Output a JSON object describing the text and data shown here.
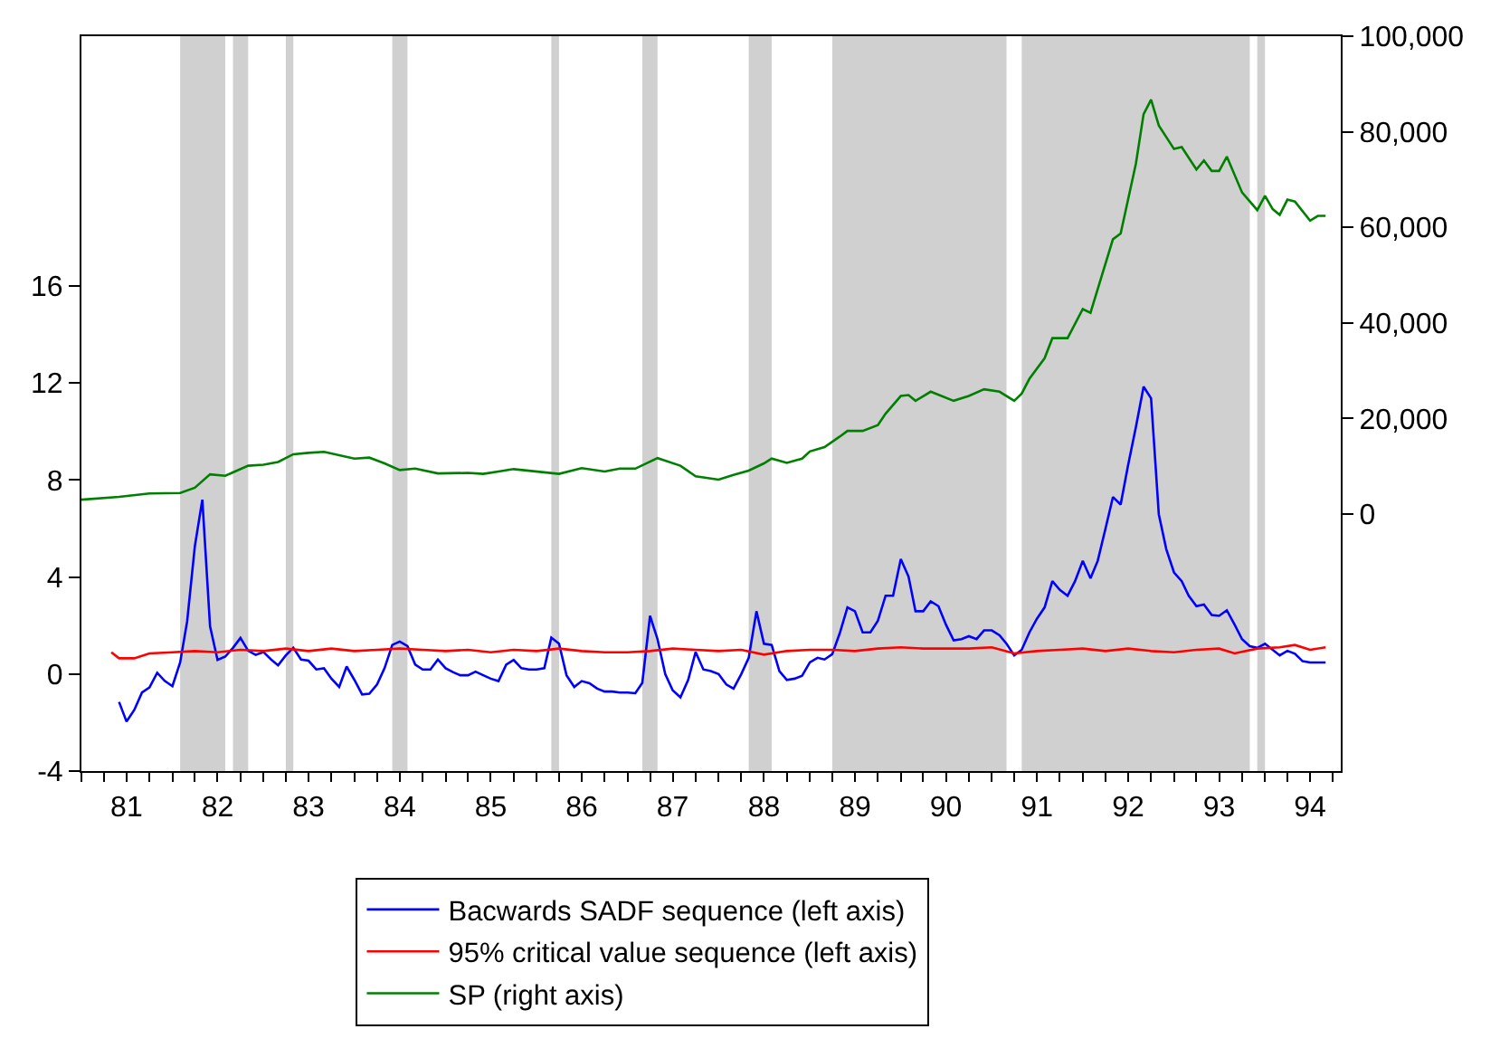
{
  "chart_data": {
    "type": "line",
    "x": [
      "1981-06",
      "1981-07",
      "1981-08",
      "1981-09",
      "1981-10",
      "1981-11",
      "1981-12",
      "1982-01",
      "1982-02",
      "1982-03",
      "1982-04",
      "1982-05",
      "1982-06",
      "1982-07",
      "1982-08",
      "1982-09",
      "1982-10",
      "1982-11",
      "1982-12",
      "1983-01",
      "1983-02",
      "1983-03",
      "1983-04",
      "1983-05",
      "1983-06",
      "1983-07",
      "1983-08",
      "1983-09",
      "1983-10",
      "1983-11",
      "1983-12",
      "1984-01",
      "1984-02",
      "1984-03",
      "1984-04",
      "1984-05",
      "1984-06",
      "1984-07",
      "1984-08",
      "1984-09",
      "1984-10",
      "1984-11",
      "1984-12",
      "1985-01",
      "1985-02",
      "1985-03",
      "1985-04",
      "1985-05",
      "1985-06",
      "1985-07",
      "1985-08",
      "1985-09",
      "1985-10",
      "1985-11",
      "1985-12",
      "1986-01",
      "1986-02",
      "1986-03",
      "1986-04",
      "1986-05",
      "1986-06",
      "1986-07",
      "1986-08",
      "1986-09",
      "1986-10",
      "1986-11",
      "1986-12",
      "1987-01",
      "1987-02",
      "1987-03",
      "1987-04",
      "1987-05",
      "1987-06",
      "1987-07",
      "1987-08",
      "1987-09",
      "1987-10",
      "1987-11",
      "1987-12",
      "1988-01",
      "1988-02",
      "1988-03",
      "1988-04",
      "1988-05",
      "1988-06",
      "1988-07",
      "1988-08",
      "1988-09",
      "1988-10",
      "1988-11",
      "1988-12",
      "1989-01",
      "1989-02",
      "1989-03",
      "1989-04",
      "1989-05",
      "1989-06",
      "1989-07",
      "1989-08",
      "1989-09",
      "1989-10",
      "1989-11",
      "1989-12",
      "1990-01",
      "1990-02",
      "1990-03",
      "1990-04",
      "1990-05",
      "1990-06",
      "1990-07",
      "1990-08",
      "1990-09",
      "1990-10",
      "1990-11",
      "1990-12",
      "1991-01",
      "1991-02",
      "1991-03",
      "1991-04",
      "1991-05",
      "1991-06",
      "1991-07",
      "1991-08",
      "1991-09",
      "1991-10",
      "1991-11",
      "1991-12",
      "1992-01",
      "1992-02",
      "1992-03",
      "1992-04",
      "1992-05",
      "1992-06",
      "1992-07",
      "1992-08",
      "1992-09",
      "1992-10",
      "1992-11",
      "1992-12",
      "1993-01",
      "1993-02",
      "1993-03",
      "1993-04",
      "1993-05",
      "1993-06",
      "1993-07",
      "1993-08",
      "1993-09",
      "1993-10",
      "1993-11",
      "1993-12",
      "1994-01",
      "1994-02",
      "1994-03",
      "1994-04",
      "1994-05",
      "1994-06",
      "1994-07",
      "1994-08",
      "1994-09"
    ],
    "series": [
      {
        "name": "Bacwards SADF sequence (left axis)",
        "color": "#0000ff",
        "values": [
          -1.15,
          -1.96,
          -1.48,
          -0.76,
          -0.55,
          0.05,
          -0.28,
          -0.5,
          0.48,
          2.16,
          5.27,
          7.19,
          1.97,
          0.58,
          0.72,
          1.08,
          1.49,
          0.96,
          0.79,
          0.91,
          0.6,
          0.36,
          0.77,
          1.08,
          0.6,
          0.55,
          0.19,
          0.24,
          -0.19,
          -0.53,
          0.31,
          -0.24,
          -0.84,
          -0.81,
          -0.43,
          0.24,
          1.2,
          1.34,
          1.15,
          0.39,
          0.19,
          0.19,
          0.6,
          0.24,
          0.07,
          -0.05,
          -0.05,
          0.1,
          -0.05,
          -0.19,
          -0.29,
          0.39,
          0.58,
          0.24,
          0.19,
          0.19,
          0.24,
          1.5,
          1.25,
          -0.05,
          -0.53,
          -0.29,
          -0.38,
          -0.6,
          -0.72,
          -0.72,
          -0.76,
          -0.76,
          -0.79,
          -0.36,
          2.4,
          1.44,
          0.0,
          -0.67,
          -0.96,
          -0.24,
          0.91,
          0.19,
          0.12,
          0.0,
          -0.43,
          -0.6,
          0.0,
          0.67,
          2.59,
          1.25,
          1.2,
          0.12,
          -0.24,
          -0.19,
          -0.07,
          0.48,
          0.67,
          0.6,
          0.82,
          1.68,
          2.75,
          2.59,
          1.72,
          1.72,
          2.2,
          3.23,
          3.23,
          4.74,
          4.02,
          2.59,
          2.59,
          3.0,
          2.8,
          2.04,
          1.39,
          1.44,
          1.56,
          1.44,
          1.8,
          1.8,
          1.6,
          1.25,
          0.77,
          1.0,
          1.72,
          2.28,
          2.75,
          3.83,
          3.47,
          3.23,
          3.83,
          4.67,
          3.95,
          4.67,
          5.99,
          7.3,
          6.99,
          8.62,
          10.18,
          11.85,
          11.37,
          6.59,
          5.15,
          4.19,
          3.83,
          3.23,
          2.8,
          2.87,
          2.44,
          2.4,
          2.63,
          2.04,
          1.44,
          1.15,
          1.08,
          1.25,
          1.0,
          0.77,
          0.96,
          0.84,
          0.53,
          0.48,
          0.48,
          0.48
        ]
      },
      {
        "name": "95% critical value sequence (left axis)",
        "color": "#ff0000",
        "x": [
          "1981-05",
          "1981-06",
          "1981-08",
          "1981-10",
          "1982-01",
          "1982-04",
          "1982-07",
          "1982-10",
          "1983-01",
          "1983-04",
          "1983-07",
          "1983-10",
          "1984-01",
          "1984-04",
          "1984-07",
          "1984-10",
          "1985-01",
          "1985-04",
          "1985-07",
          "1985-10",
          "1986-01",
          "1986-04",
          "1986-07",
          "1986-10",
          "1987-01",
          "1987-04",
          "1987-07",
          "1987-10",
          "1988-01",
          "1988-04",
          "1988-07",
          "1988-10",
          "1989-01",
          "1989-04",
          "1989-07",
          "1989-10",
          "1990-01",
          "1990-04",
          "1990-07",
          "1990-10",
          "1991-01",
          "1991-04",
          "1991-07",
          "1991-10",
          "1992-01",
          "1992-04",
          "1992-07",
          "1992-10",
          "1993-01",
          "1993-04",
          "1993-07",
          "1993-09",
          "1993-12",
          "1994-03",
          "1994-05",
          "1994-07",
          "1994-09"
        ],
        "values": [
          0.9,
          0.65,
          0.65,
          0.85,
          0.9,
          0.95,
          0.9,
          1.0,
          0.95,
          1.05,
          0.95,
          1.05,
          0.95,
          1.0,
          1.05,
          1.0,
          0.95,
          1.0,
          0.9,
          1.0,
          0.95,
          1.05,
          0.95,
          0.9,
          0.9,
          0.95,
          1.05,
          1.0,
          0.95,
          1.0,
          0.8,
          0.95,
          1.0,
          1.0,
          0.95,
          1.05,
          1.1,
          1.05,
          1.05,
          1.05,
          1.1,
          0.85,
          0.95,
          1.0,
          1.05,
          0.95,
          1.05,
          0.95,
          0.9,
          1.0,
          1.05,
          0.85,
          1.05,
          1.1,
          1.2,
          1.0,
          1.1
        ]
      },
      {
        "name": "SP (right axis)",
        "color": "#008000",
        "axis": "y2",
        "x": [
          "1981-01",
          "1981-06",
          "1981-10",
          "1982-02",
          "1982-04",
          "1982-06",
          "1982-08",
          "1982-11",
          "1983-01",
          "1983-03",
          "1983-05",
          "1983-07",
          "1983-09",
          "1984-01",
          "1984-03",
          "1984-05",
          "1984-07",
          "1984-09",
          "1984-12",
          "1985-04",
          "1985-06",
          "1985-08",
          "1985-10",
          "1986-04",
          "1986-07",
          "1986-10",
          "1986-12",
          "1987-02",
          "1987-05",
          "1987-08",
          "1987-10",
          "1988-01",
          "1988-03",
          "1988-05",
          "1988-07",
          "1988-08",
          "1988-10",
          "1988-12",
          "1989-01",
          "1989-03",
          "1989-05",
          "1989-06",
          "1989-08",
          "1989-10",
          "1989-11",
          "1990-01",
          "1990-02",
          "1990-03",
          "1990-05",
          "1990-08",
          "1990-10",
          "1990-12",
          "1991-02",
          "1991-04",
          "1991-05",
          "1991-06",
          "1991-08",
          "1991-09",
          "1991-11",
          "1992-01",
          "1992-02",
          "1992-05",
          "1992-06",
          "1992-08",
          "1992-09",
          "1992-10",
          "1992-11",
          "1993-01",
          "1993-02",
          "1993-04",
          "1993-05",
          "1993-06",
          "1993-07",
          "1993-08",
          "1993-10",
          "1993-12",
          "1994-01",
          "1994-02",
          "1994-03",
          "1994-04",
          "1994-05",
          "1994-07",
          "1994-08",
          "1994-09"
        ],
        "values": [
          3000,
          3600,
          4300,
          4400,
          5500,
          8300,
          8000,
          10100,
          10300,
          10900,
          12500,
          12800,
          13000,
          11600,
          11800,
          10600,
          9200,
          9500,
          8500,
          8600,
          8400,
          8900,
          9400,
          8400,
          9600,
          8900,
          9500,
          9500,
          11700,
          10100,
          7900,
          7200,
          8200,
          9100,
          10600,
          11600,
          10700,
          11600,
          13100,
          14000,
          16200,
          17400,
          17400,
          18600,
          21000,
          24700,
          24900,
          23700,
          25600,
          23700,
          24700,
          26100,
          25600,
          23700,
          25200,
          28300,
          32600,
          36800,
          36800,
          42900,
          42100,
          57500,
          58700,
          73300,
          83700,
          86700,
          81300,
          76400,
          76800,
          72100,
          74000,
          71800,
          71800,
          74800,
          67300,
          63600,
          66600,
          63800,
          62600,
          65800,
          65400,
          61400,
          62400,
          62400
        ]
      }
    ],
    "xlim": [
      "1981-01",
      "1994-11"
    ],
    "xticks": [
      {
        "value": "1981-01",
        "label": null
      },
      {
        "value": "1981-04",
        "label": null
      },
      {
        "value": "1981-07",
        "label": "81"
      },
      {
        "value": "1981-10",
        "label": null
      },
      {
        "value": "1982-01",
        "label": null
      },
      {
        "value": "1982-04",
        "label": null
      },
      {
        "value": "1982-07",
        "label": "82"
      },
      {
        "value": "1982-10",
        "label": null
      },
      {
        "value": "1983-01",
        "label": null
      },
      {
        "value": "1983-04",
        "label": null
      },
      {
        "value": "1983-07",
        "label": "83"
      },
      {
        "value": "1983-10",
        "label": null
      },
      {
        "value": "1984-01",
        "label": null
      },
      {
        "value": "1984-04",
        "label": null
      },
      {
        "value": "1984-07",
        "label": "84"
      },
      {
        "value": "1984-10",
        "label": null
      },
      {
        "value": "1985-01",
        "label": null
      },
      {
        "value": "1985-04",
        "label": null
      },
      {
        "value": "1985-07",
        "label": "85"
      },
      {
        "value": "1985-10",
        "label": null
      },
      {
        "value": "1986-01",
        "label": null
      },
      {
        "value": "1986-04",
        "label": null
      },
      {
        "value": "1986-07",
        "label": "86"
      },
      {
        "value": "1986-10",
        "label": null
      },
      {
        "value": "1987-01",
        "label": null
      },
      {
        "value": "1987-04",
        "label": null
      },
      {
        "value": "1987-07",
        "label": "87"
      },
      {
        "value": "1987-10",
        "label": null
      },
      {
        "value": "1988-01",
        "label": null
      },
      {
        "value": "1988-04",
        "label": null
      },
      {
        "value": "1988-07",
        "label": "88"
      },
      {
        "value": "1988-10",
        "label": null
      },
      {
        "value": "1989-01",
        "label": null
      },
      {
        "value": "1989-04",
        "label": null
      },
      {
        "value": "1989-07",
        "label": "89"
      },
      {
        "value": "1989-10",
        "label": null
      },
      {
        "value": "1990-01",
        "label": null
      },
      {
        "value": "1990-04",
        "label": null
      },
      {
        "value": "1990-07",
        "label": "90"
      },
      {
        "value": "1990-10",
        "label": null
      },
      {
        "value": "1991-01",
        "label": null
      },
      {
        "value": "1991-04",
        "label": null
      },
      {
        "value": "1991-07",
        "label": "91"
      },
      {
        "value": "1991-10",
        "label": null
      },
      {
        "value": "1992-01",
        "label": null
      },
      {
        "value": "1992-04",
        "label": null
      },
      {
        "value": "1992-07",
        "label": "92"
      },
      {
        "value": "1992-10",
        "label": null
      },
      {
        "value": "1993-01",
        "label": null
      },
      {
        "value": "1993-04",
        "label": null
      },
      {
        "value": "1993-07",
        "label": "93"
      },
      {
        "value": "1993-10",
        "label": null
      },
      {
        "value": "1994-01",
        "label": null
      },
      {
        "value": "1994-04",
        "label": null
      },
      {
        "value": "1994-07",
        "label": "94"
      },
      {
        "value": "1994-10",
        "label": null
      }
    ],
    "ylim": [
      -4,
      26.3
    ],
    "yticks": [
      -4,
      0,
      4,
      8,
      12,
      16
    ],
    "y2lim": [
      -53800,
      100000
    ],
    "y2ticks": [
      {
        "value": 0,
        "label": "0"
      },
      {
        "value": 20000,
        "label": "20,000"
      },
      {
        "value": 40000,
        "label": "40,000"
      },
      {
        "value": 60000,
        "label": "60,000"
      },
      {
        "value": 80000,
        "label": "80,000"
      },
      {
        "value": 100000,
        "label": "100,000"
      }
    ],
    "bands": [
      {
        "axis": "x",
        "from": "1982-02",
        "to": "1982-08",
        "color": "#d0d0d0"
      },
      {
        "axis": "x",
        "from": "1982-09",
        "to": "1982-11",
        "color": "#d0d0d0"
      },
      {
        "axis": "x",
        "from": "1983-04",
        "to": "1983-05",
        "color": "#d0d0d0"
      },
      {
        "axis": "x",
        "from": "1984-06",
        "to": "1984-08",
        "color": "#d0d0d0"
      },
      {
        "axis": "x",
        "from": "1986-03",
        "to": "1986-04",
        "color": "#d0d0d0"
      },
      {
        "axis": "x",
        "from": "1987-03",
        "to": "1987-05",
        "color": "#d0d0d0"
      },
      {
        "axis": "x",
        "from": "1988-05",
        "to": "1988-08",
        "color": "#d0d0d0"
      },
      {
        "axis": "x",
        "from": "1989-04",
        "to": "1991-03",
        "color": "#d0d0d0"
      },
      {
        "axis": "x",
        "from": "1991-05",
        "to": "1993-11",
        "color": "#d0d0d0"
      },
      {
        "axis": "x",
        "from": "1993-12",
        "to": "1994-01",
        "color": "#d0d0d0"
      }
    ],
    "grid": false,
    "legend": "bottom",
    "marker": "none",
    "line_style": "solid"
  }
}
